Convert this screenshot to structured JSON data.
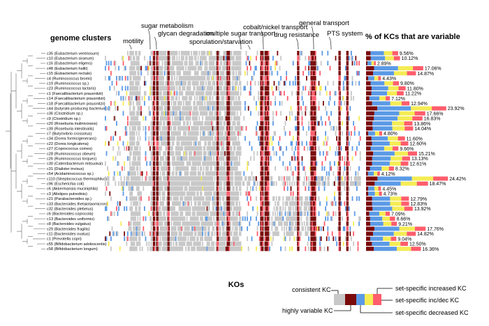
{
  "chart_data": {
    "type": "heatmap",
    "heatmap_title": "genome clusters",
    "xlabel": "KOs",
    "bar_title": "% of KCs that are variable",
    "categories_annotated": [
      "motility",
      "sugar metabolism",
      "glycan degradation",
      "multiple sugar transport",
      "sporulation/starvation",
      "cobalt/nickel transport",
      "drug resistance",
      "general transport",
      "PTS system"
    ],
    "rows": [
      {
        "label": "c35 (Eubacterium ventriosum)",
        "pct": "9.56%"
      },
      {
        "label": "c10 (Eubacterium siraeum)",
        "pct": "10.12%"
      },
      {
        "label": "c16 (Eubacterium eligens)",
        "pct": "2.89%"
      },
      {
        "label": "c48 (Eubacterium hallii)",
        "pct": "17.06%"
      },
      {
        "label": "c15 (Eubacterium rectale)",
        "pct": "14.87%"
      },
      {
        "label": "c4 (Ruminococcus bromii)",
        "pct": "4.43%"
      },
      {
        "label": "c19 (Ruminococcus sp.)",
        "pct": "9.80%"
      },
      {
        "label": "c23 (Ruminococcus lactaris)",
        "pct": "11.80%"
      },
      {
        "label": "c1 (Faecalibacterium prausnitzii)",
        "pct": "11.22%"
      },
      {
        "label": "c14 (Faecalibacterium prausnitzii)",
        "pct": "7.12%"
      },
      {
        "label": "c18 (Faecalibacterium prausnitzii)",
        "pct": "12.94%"
      },
      {
        "label": "c44 (butyrate-producing bacterium)",
        "pct": "23.92%"
      },
      {
        "label": "c36 (Clostridium sp.)",
        "pct": "17.66%"
      },
      {
        "label": "c9 (Clostridium sp.)",
        "pct": "16.83%"
      },
      {
        "label": "c20 (Roseburia inulinivorans)",
        "pct": "13.86%"
      },
      {
        "label": "c39 (Roseburia intestinalis)",
        "pct": "14.04%"
      },
      {
        "label": "c7 (Butyrivibrio crossotus)",
        "pct": "4.80%"
      },
      {
        "label": "c34 (Dorea formicigenerans)",
        "pct": "11.60%"
      },
      {
        "label": "c22 (Dorea longicatena)",
        "pct": "12.60%"
      },
      {
        "label": "c27 (Coprococcus comes)",
        "pct": "9.66%"
      },
      {
        "label": "c28 (Ruminococcus obeum)",
        "pct": "15.21%"
      },
      {
        "label": "c26 (Ruminococcus torques)",
        "pct": "13.13%"
      },
      {
        "label": "c30 (Catenibacterium mitsuokai)",
        "pct": "12.61%"
      },
      {
        "label": "c31 (Dialister invisus)",
        "pct": "8.32%"
      },
      {
        "label": "c54 (Acidaminococcus sp.)",
        "pct": "4.12%"
      },
      {
        "label": "c110 (Streptococcus thermophilus)",
        "pct": "24.42%"
      },
      {
        "label": "c96 (Escherichia coli)",
        "pct": "18.47%"
      },
      {
        "label": "c6 (Akkermansia muciniphila)",
        "pct": "4.45%"
      },
      {
        "label": "c3 (Alistipes putredinis)",
        "pct": "4.73%"
      },
      {
        "label": "c21 (Parabacteroides sp.)",
        "pct": "12.79%"
      },
      {
        "label": "c33 (Bacteroides thetaiotaomicron)",
        "pct": "12.83%"
      },
      {
        "label": "c32 (Bacteroides plebeius)",
        "pct": "13.92%"
      },
      {
        "label": "c6 (Bacteroides coprocola)",
        "pct": "7.09%"
      },
      {
        "label": "c13 (Bacteroides uniformis)",
        "pct": "8.66%"
      },
      {
        "label": "c8 (Bacteroides vulgatus)",
        "pct": "9.21%"
      },
      {
        "label": "c29 (Bacteroides fragilis)",
        "pct": "17.76%"
      },
      {
        "label": "c11 (Bacteroides ovatus)",
        "pct": "14.82%"
      },
      {
        "label": "c1 (Prevotella copri)",
        "pct": "9.04%"
      },
      {
        "label": "c55 (Bifidobacterium adolescentis)",
        "pct": "12.50%"
      },
      {
        "label": "c58 (Bifidobacterium longum)",
        "pct": "16.36%"
      }
    ],
    "legend": [
      {
        "label": "consistent KC",
        "color": "#c8c8c8"
      },
      {
        "label": "highly variable KC",
        "color": "#7a0a0a"
      },
      {
        "label": "set-specific increased KC",
        "color": "#ff5d6c"
      },
      {
        "label": "set-specific inc/dec KC",
        "color": "#f5ec55"
      },
      {
        "label": "set-specific decreased KC",
        "color": "#5b9ae6"
      }
    ]
  }
}
